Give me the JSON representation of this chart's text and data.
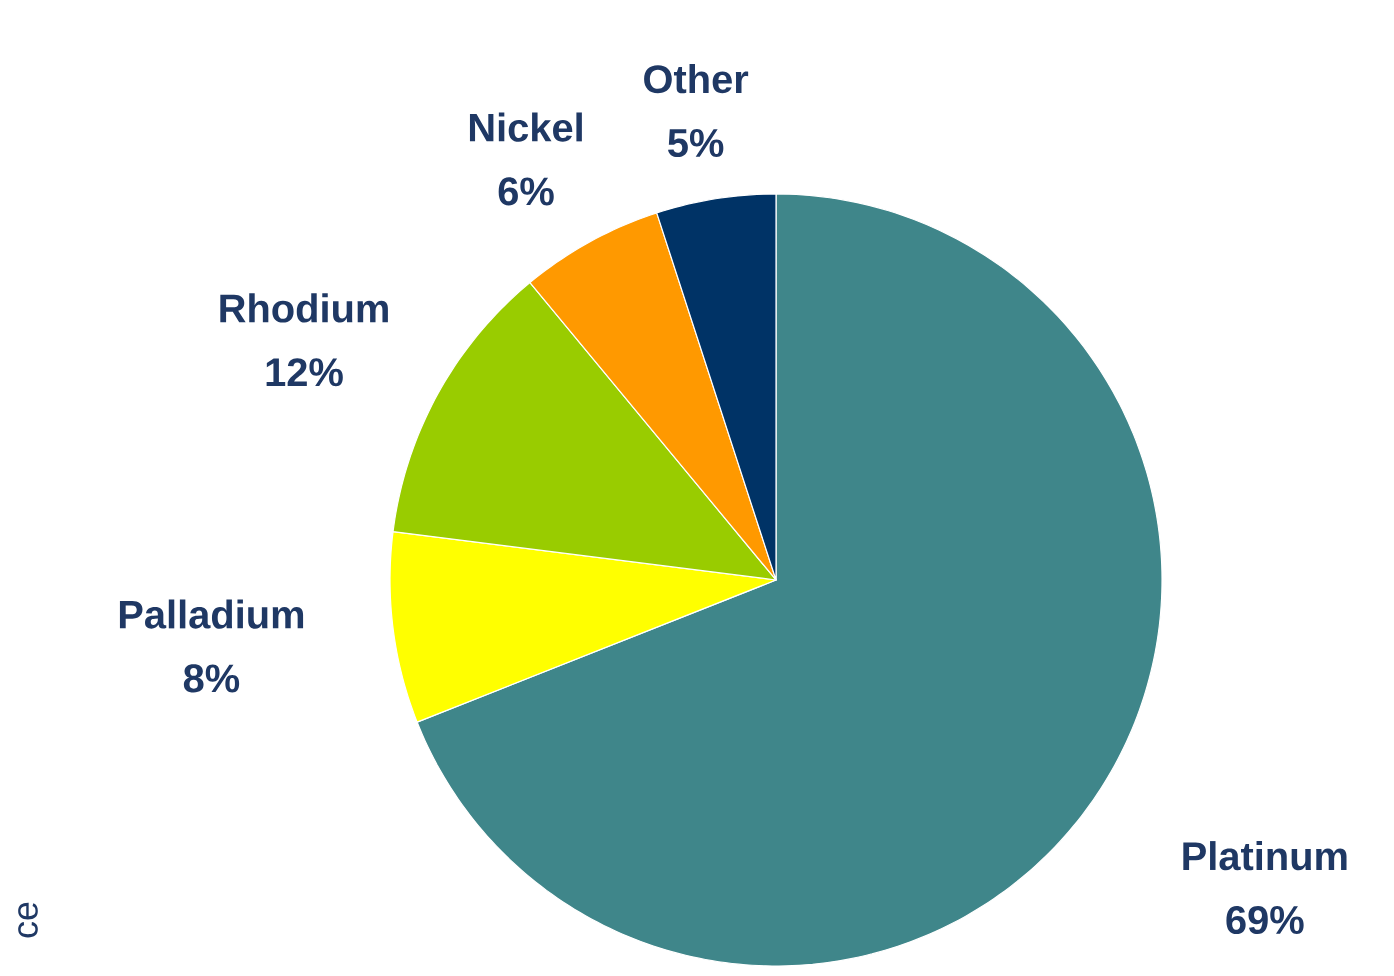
{
  "chart_data": {
    "type": "pie",
    "categories": [
      "Platinum",
      "Palladium",
      "Rhodium",
      "Nickel",
      "Other"
    ],
    "values": [
      69,
      8,
      12,
      6,
      5
    ],
    "colors": [
      "#3f868a",
      "#ffff00",
      "#99cc00",
      "#ff9900",
      "#003366"
    ],
    "value_labels": [
      "69%",
      "8%",
      "12%",
      "6%",
      "5%"
    ],
    "annotations": [
      "ce"
    ]
  }
}
